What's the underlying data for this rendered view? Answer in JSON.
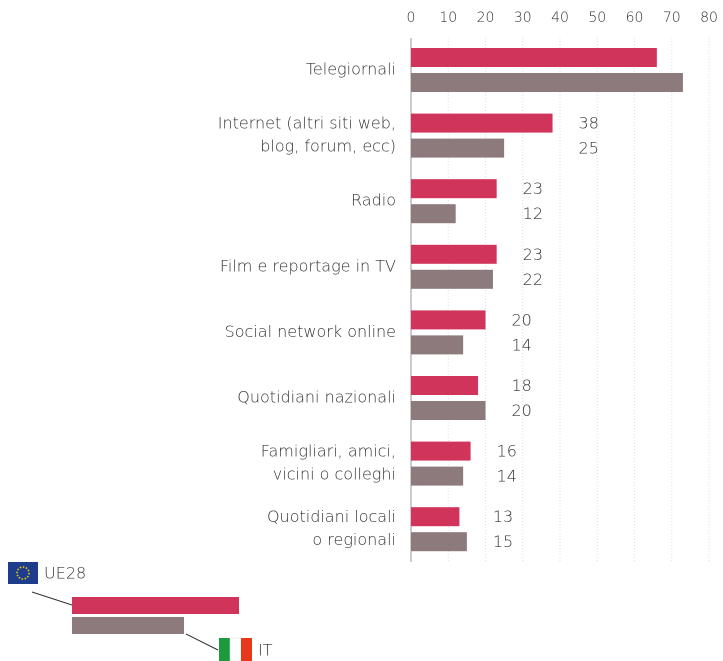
{
  "chart_data": {
    "type": "bar",
    "orientation": "horizontal",
    "categories": [
      [
        "Telegiornali"
      ],
      [
        "Internet (altri siti web,",
        "blog, forum, ecc)"
      ],
      [
        "Radio"
      ],
      [
        "Film e reportage in TV"
      ],
      [
        "Social network online"
      ],
      [
        "Quotidiani nazionali"
      ],
      [
        "Famigliari, amici,",
        "vicini o colleghi"
      ],
      [
        "Quotidiani locali",
        "o regionali"
      ]
    ],
    "series": [
      {
        "name": "UE28",
        "color": "#d0345a",
        "values": [
          66,
          38,
          23,
          23,
          20,
          18,
          16,
          13
        ],
        "value_labels": [
          null,
          "38",
          "23",
          "23",
          "20",
          "18",
          "16",
          "13"
        ]
      },
      {
        "name": "IT",
        "color": "#8c7a7d",
        "values": [
          73,
          25,
          12,
          22,
          14,
          20,
          14,
          15
        ],
        "value_labels": [
          null,
          "25",
          "12",
          "22",
          "14",
          "20",
          "14",
          "15"
        ]
      }
    ],
    "xlim": [
      0,
      80
    ],
    "xticks": [
      0,
      10,
      20,
      30,
      40,
      50,
      60,
      70,
      80
    ],
    "grid": true
  }
}
